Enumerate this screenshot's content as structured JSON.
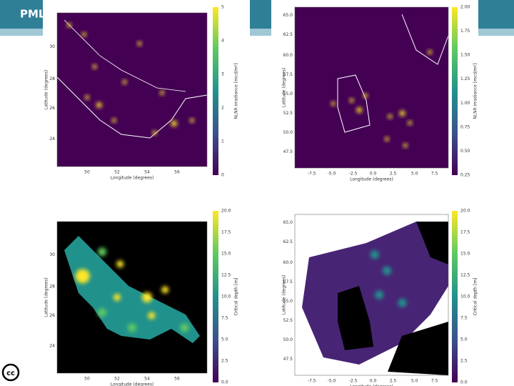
{
  "header": {
    "title": "PML"
  },
  "panels": [
    {
      "x_label": "Longitude (degrees)",
      "y_label": "Latitude (degrees)",
      "colorbar_label": "NLNR irradiance [mcd/m²]",
      "x_ticks": [
        "50",
        "52",
        "54",
        "56"
      ],
      "y_ticks": [
        "30",
        "28",
        "26",
        "24"
      ],
      "colorbar_ticks": [
        "5",
        "4",
        "3",
        "2",
        "1",
        "0"
      ]
    },
    {
      "x_label": "Longitude (degrees)",
      "y_label": "Latitude (degrees)",
      "colorbar_label": "NLNR irradiance [mcd/m²]",
      "x_ticks": [
        "-7.5",
        "-5.0",
        "-2.5",
        "0.0",
        "2.5",
        "5.0",
        "7.5"
      ],
      "y_ticks": [
        "65.0",
        "62.5",
        "60.0",
        "57.5",
        "55.0",
        "52.5",
        "50.0",
        "47.5"
      ],
      "colorbar_ticks": [
        "2.00",
        "1.75",
        "1.50",
        "1.25",
        "1.00",
        "0.75",
        "0.50",
        "0.25"
      ]
    },
    {
      "x_label": "Longitude (degrees)",
      "y_label": "Latitude (degrees)",
      "colorbar_label": "Critical depth [m]",
      "x_ticks": [
        "50",
        "52",
        "54",
        "56"
      ],
      "y_ticks": [
        "30",
        "28",
        "26",
        "24"
      ],
      "colorbar_ticks": [
        "20.0",
        "17.5",
        "15.0",
        "12.5",
        "10.0",
        "7.5",
        "5.0",
        "2.5",
        "0.0"
      ]
    },
    {
      "x_label": "Longitude (degrees)",
      "y_label": "Latitude (degrees)",
      "colorbar_label": "Critical depth [m]",
      "x_ticks": [
        "-7.5",
        "-5.0",
        "-2.5",
        "0.0",
        "2.5",
        "5.0",
        "7.5"
      ],
      "y_ticks": [
        "65.0",
        "62.5",
        "60.0",
        "57.5",
        "55.0",
        "52.5",
        "50.0",
        "47.5"
      ],
      "colorbar_ticks": [
        "20.0",
        "17.5",
        "15.0",
        "12.5",
        "10.0",
        "7.5",
        "5.0",
        "2.5",
        "0.0"
      ]
    }
  ]
}
